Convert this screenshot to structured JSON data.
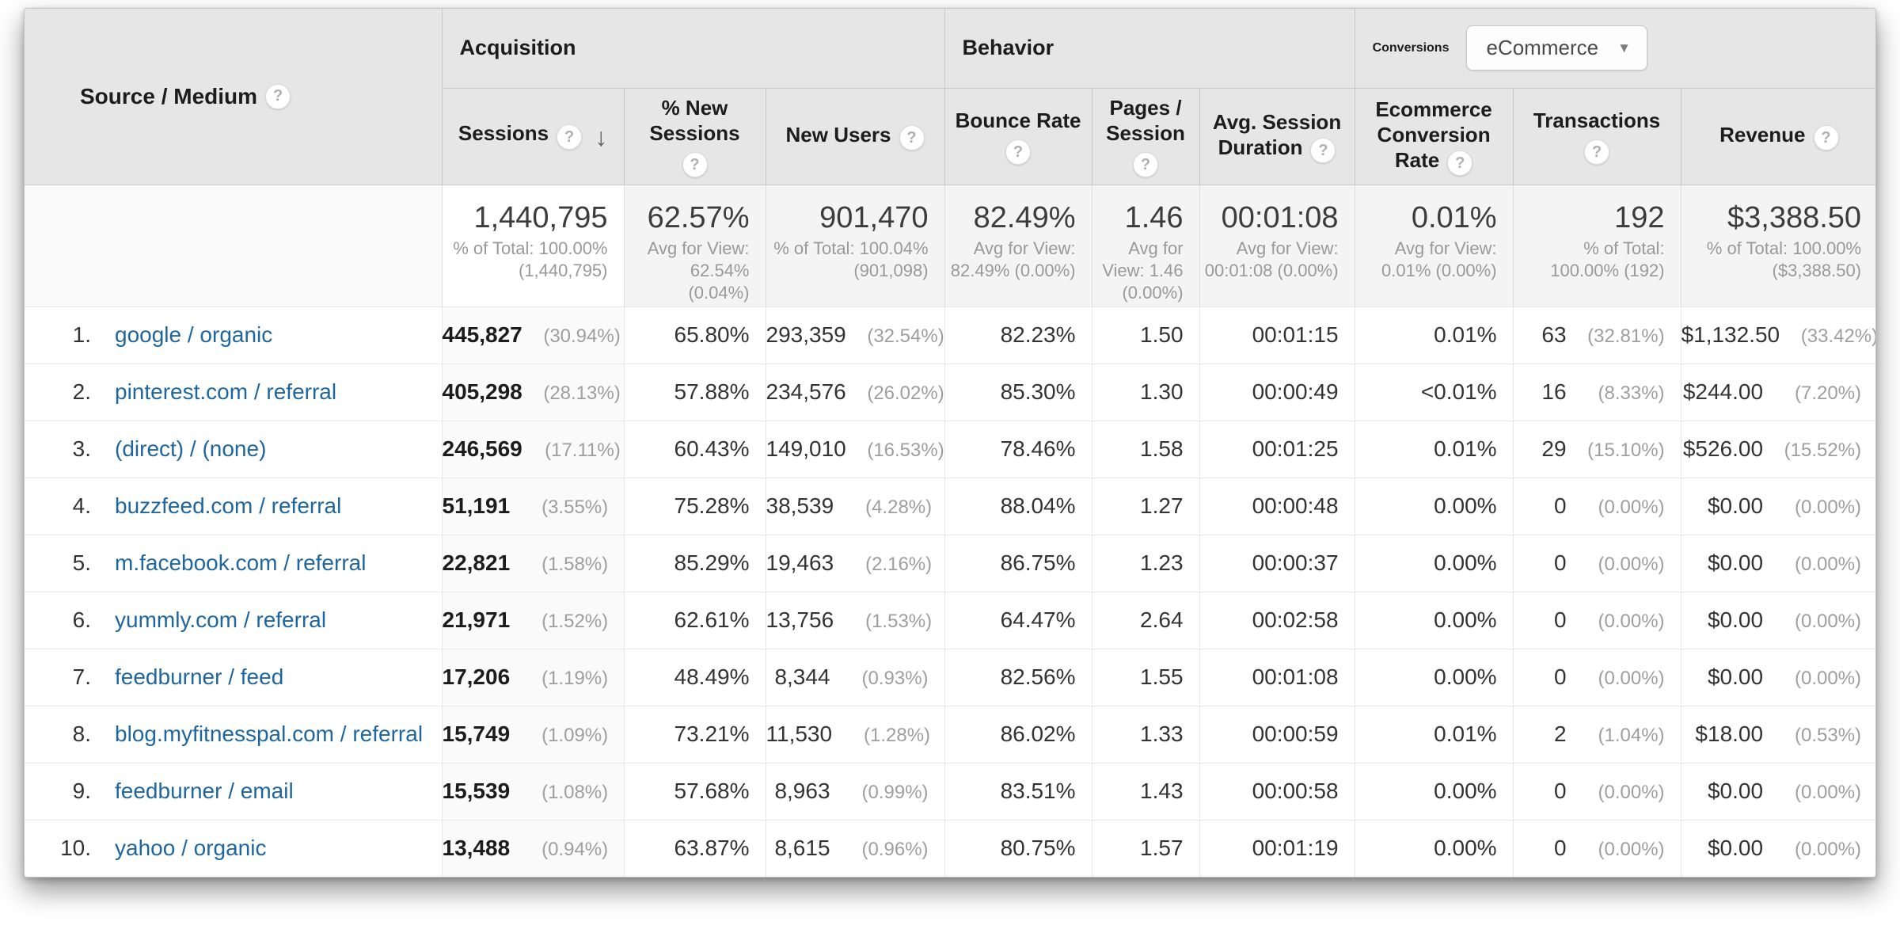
{
  "icons": {
    "help": "?",
    "sort_desc": "↓",
    "dropdown_caret": "▼"
  },
  "colors": {
    "link_blue": "#1e66a0",
    "header_bg": "#e6e6e6",
    "percent_gray": "#9e9e9e"
  },
  "table": {
    "dimension_header": "Source / Medium",
    "groups": {
      "acquisition": "Acquisition",
      "behavior": "Behavior",
      "conversions": "Conversions",
      "conversions_dropdown_value": "eCommerce"
    },
    "columns": [
      {
        "label": "Sessions",
        "sorted": "desc"
      },
      {
        "label": "% New Sessions"
      },
      {
        "label": "New Users"
      },
      {
        "label": "Bounce Rate"
      },
      {
        "label": "Pages / Session"
      },
      {
        "label": "Avg. Session Duration"
      },
      {
        "label": "Ecommerce Conversion Rate"
      },
      {
        "label": "Transactions"
      },
      {
        "label": "Revenue"
      }
    ],
    "totals": {
      "sessions": {
        "value": "1,440,795",
        "note": "% of Total: 100.00% (1,440,795)"
      },
      "new_sessions": {
        "value": "62.57%",
        "note": "Avg for View: 62.54% (0.04%)"
      },
      "new_users": {
        "value": "901,470",
        "note": "% of Total: 100.04% (901,098)"
      },
      "bounce_rate": {
        "value": "82.49%",
        "note": "Avg for View: 82.49% (0.00%)"
      },
      "pages_session": {
        "value": "1.46",
        "note": "Avg for View: 1.46 (0.00%)"
      },
      "avg_duration": {
        "value": "00:01:08",
        "note": "Avg for View: 00:01:08 (0.00%)"
      },
      "conv_rate": {
        "value": "0.01%",
        "note": "Avg for View: 0.01% (0.00%)"
      },
      "transactions": {
        "value": "192",
        "note": "% of Total: 100.00% (192)"
      },
      "revenue": {
        "value": "$3,388.50",
        "note": "% of Total: 100.00% ($3,388.50)"
      }
    },
    "rows": [
      {
        "rank": "1.",
        "source": "google / organic",
        "sessions": "445,827",
        "sessions_pct": "(30.94%)",
        "new_sessions": "65.80%",
        "new_users": "293,359",
        "new_users_pct": "(32.54%)",
        "bounce_rate": "82.23%",
        "pages_session": "1.50",
        "avg_duration": "00:01:15",
        "conv_rate": "0.01%",
        "transactions": "63",
        "transactions_pct": "(32.81%)",
        "revenue": "$1,132.50",
        "revenue_pct": "(33.42%)"
      },
      {
        "rank": "2.",
        "source": "pinterest.com / referral",
        "sessions": "405,298",
        "sessions_pct": "(28.13%)",
        "new_sessions": "57.88%",
        "new_users": "234,576",
        "new_users_pct": "(26.02%)",
        "bounce_rate": "85.30%",
        "pages_session": "1.30",
        "avg_duration": "00:00:49",
        "conv_rate": "<0.01%",
        "transactions": "16",
        "transactions_pct": "(8.33%)",
        "revenue": "$244.00",
        "revenue_pct": "(7.20%)"
      },
      {
        "rank": "3.",
        "source": "(direct) / (none)",
        "sessions": "246,569",
        "sessions_pct": "(17.11%)",
        "new_sessions": "60.43%",
        "new_users": "149,010",
        "new_users_pct": "(16.53%)",
        "bounce_rate": "78.46%",
        "pages_session": "1.58",
        "avg_duration": "00:01:25",
        "conv_rate": "0.01%",
        "transactions": "29",
        "transactions_pct": "(15.10%)",
        "revenue": "$526.00",
        "revenue_pct": "(15.52%)"
      },
      {
        "rank": "4.",
        "source": "buzzfeed.com / referral",
        "sessions": "51,191",
        "sessions_pct": "(3.55%)",
        "new_sessions": "75.28%",
        "new_users": "38,539",
        "new_users_pct": "(4.28%)",
        "bounce_rate": "88.04%",
        "pages_session": "1.27",
        "avg_duration": "00:00:48",
        "conv_rate": "0.00%",
        "transactions": "0",
        "transactions_pct": "(0.00%)",
        "revenue": "$0.00",
        "revenue_pct": "(0.00%)"
      },
      {
        "rank": "5.",
        "source": "m.facebook.com / referral",
        "sessions": "22,821",
        "sessions_pct": "(1.58%)",
        "new_sessions": "85.29%",
        "new_users": "19,463",
        "new_users_pct": "(2.16%)",
        "bounce_rate": "86.75%",
        "pages_session": "1.23",
        "avg_duration": "00:00:37",
        "conv_rate": "0.00%",
        "transactions": "0",
        "transactions_pct": "(0.00%)",
        "revenue": "$0.00",
        "revenue_pct": "(0.00%)"
      },
      {
        "rank": "6.",
        "source": "yummly.com / referral",
        "sessions": "21,971",
        "sessions_pct": "(1.52%)",
        "new_sessions": "62.61%",
        "new_users": "13,756",
        "new_users_pct": "(1.53%)",
        "bounce_rate": "64.47%",
        "pages_session": "2.64",
        "avg_duration": "00:02:58",
        "conv_rate": "0.00%",
        "transactions": "0",
        "transactions_pct": "(0.00%)",
        "revenue": "$0.00",
        "revenue_pct": "(0.00%)"
      },
      {
        "rank": "7.",
        "source": "feedburner / feed",
        "sessions": "17,206",
        "sessions_pct": "(1.19%)",
        "new_sessions": "48.49%",
        "new_users": "8,344",
        "new_users_pct": "(0.93%)",
        "bounce_rate": "82.56%",
        "pages_session": "1.55",
        "avg_duration": "00:01:08",
        "conv_rate": "0.00%",
        "transactions": "0",
        "transactions_pct": "(0.00%)",
        "revenue": "$0.00",
        "revenue_pct": "(0.00%)"
      },
      {
        "rank": "8.",
        "source": "blog.myfitnesspal.com / referral",
        "sessions": "15,749",
        "sessions_pct": "(1.09%)",
        "new_sessions": "73.21%",
        "new_users": "11,530",
        "new_users_pct": "(1.28%)",
        "bounce_rate": "86.02%",
        "pages_session": "1.33",
        "avg_duration": "00:00:59",
        "conv_rate": "0.01%",
        "transactions": "2",
        "transactions_pct": "(1.04%)",
        "revenue": "$18.00",
        "revenue_pct": "(0.53%)"
      },
      {
        "rank": "9.",
        "source": "feedburner / email",
        "sessions": "15,539",
        "sessions_pct": "(1.08%)",
        "new_sessions": "57.68%",
        "new_users": "8,963",
        "new_users_pct": "(0.99%)",
        "bounce_rate": "83.51%",
        "pages_session": "1.43",
        "avg_duration": "00:00:58",
        "conv_rate": "0.00%",
        "transactions": "0",
        "transactions_pct": "(0.00%)",
        "revenue": "$0.00",
        "revenue_pct": "(0.00%)"
      },
      {
        "rank": "10.",
        "source": "yahoo / organic",
        "sessions": "13,488",
        "sessions_pct": "(0.94%)",
        "new_sessions": "63.87%",
        "new_users": "8,615",
        "new_users_pct": "(0.96%)",
        "bounce_rate": "80.75%",
        "pages_session": "1.57",
        "avg_duration": "00:01:19",
        "conv_rate": "0.00%",
        "transactions": "0",
        "transactions_pct": "(0.00%)",
        "revenue": "$0.00",
        "revenue_pct": "(0.00%)"
      }
    ]
  }
}
